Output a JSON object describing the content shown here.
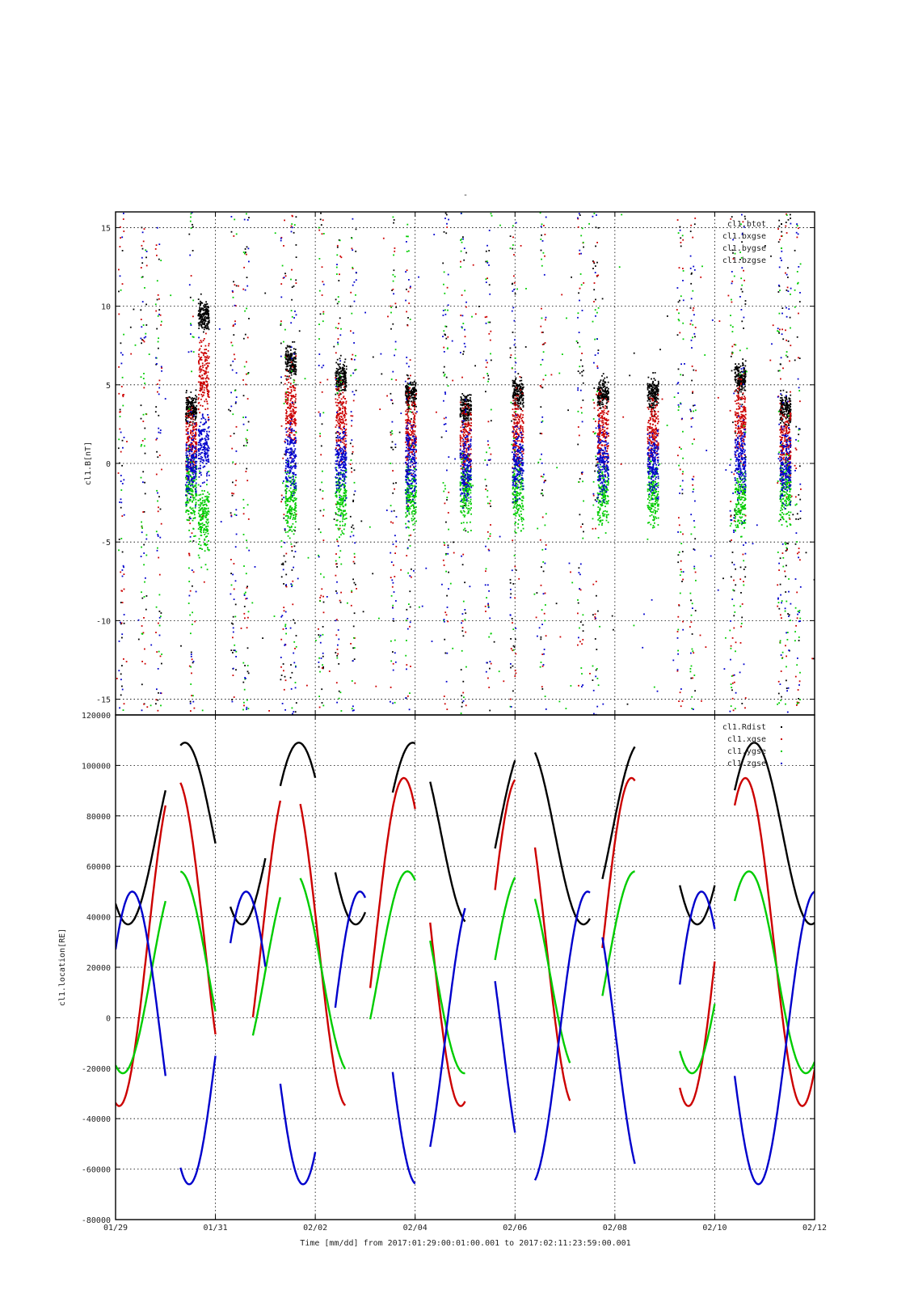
{
  "figure": {
    "title": "-",
    "xlabel": "Time [mm/dd]  from 2017:01:29:00:01:00.001  to  2017:02:11:23:59:00.001"
  },
  "chart_data": [
    {
      "type": "scatter",
      "ylabel": "cl1.B[nT]",
      "ylim": [
        -16,
        16
      ],
      "yticks": [
        -15,
        -10,
        -5,
        0,
        5,
        10,
        15
      ],
      "xlim_days": [
        0,
        14
      ],
      "xtick_labels": [
        "01/29",
        "01/31",
        "02/02",
        "02/04",
        "02/06",
        "02/08",
        "02/10",
        "02/12"
      ],
      "grid": true,
      "legend_position": "top-right",
      "series": [
        {
          "name": "cl1.btot",
          "color": "#000000"
        },
        {
          "name": "cl1.bxgse",
          "color": "#cc0000"
        },
        {
          "name": "cl1.bygse",
          "color": "#00cc00"
        },
        {
          "name": "cl1.bzgse",
          "color": "#0000cc"
        }
      ],
      "data_note_clusters_day_center_level": [
        [
          1.5,
          2
        ],
        [
          1.75,
          8
        ],
        [
          3.5,
          5
        ],
        [
          4.5,
          4
        ],
        [
          5.9,
          3
        ],
        [
          7.0,
          2
        ],
        [
          8.05,
          3
        ],
        [
          9.75,
          3
        ],
        [
          10.75,
          3
        ],
        [
          12.5,
          4
        ],
        [
          13.4,
          2
        ]
      ]
    },
    {
      "type": "line",
      "ylabel": "cl1.location[RE]",
      "ylim": [
        -80000,
        120000
      ],
      "yticks": [
        -80000,
        -60000,
        -40000,
        -20000,
        0,
        20000,
        40000,
        60000,
        80000,
        100000,
        120000
      ],
      "xlim_days": [
        0,
        14
      ],
      "xtick_labels": [
        "01/29",
        "01/31",
        "02/02",
        "02/04",
        "02/06",
        "02/08",
        "02/10",
        "02/12"
      ],
      "grid": true,
      "legend_position": "top-right",
      "orbit_period_days": 2.28,
      "series": [
        {
          "name": "cl1.Rdist",
          "color": "#000000",
          "segments": [
            [
              0,
              1
            ],
            [
              1.3,
              2.0
            ],
            [
              2.3,
              3.0
            ],
            [
              3.3,
              4.0
            ],
            [
              4.4,
              5.0
            ],
            [
              5.55,
              6.0
            ],
            [
              6.3,
              7.0
            ],
            [
              7.6,
              8.0
            ],
            [
              8.4,
              9.5
            ],
            [
              9.75,
              10.4
            ],
            [
              11.3,
              12.0
            ],
            [
              12.4,
              14.0
            ]
          ]
        },
        {
          "name": "cl1.xgse",
          "color": "#cc0000",
          "segments": [
            [
              0,
              1
            ],
            [
              1.3,
              2.0
            ],
            [
              2.75,
              3.3
            ],
            [
              3.7,
              4.6
            ],
            [
              5.1,
              6.0
            ],
            [
              6.3,
              7.0
            ],
            [
              7.6,
              8.0
            ],
            [
              8.4,
              9.1
            ],
            [
              9.75,
              10.4
            ],
            [
              11.3,
              12.0
            ],
            [
              12.4,
              14.0
            ]
          ]
        },
        {
          "name": "cl1.ygse",
          "color": "#00cc00",
          "segments": [
            [
              0,
              1
            ],
            [
              1.3,
              2.0
            ],
            [
              2.75,
              3.3
            ],
            [
              3.7,
              4.6
            ],
            [
              5.1,
              6.0
            ],
            [
              6.3,
              7.0
            ],
            [
              7.6,
              8.0
            ],
            [
              8.4,
              9.1
            ],
            [
              9.75,
              10.4
            ],
            [
              11.3,
              12.0
            ],
            [
              12.4,
              14.0
            ]
          ]
        },
        {
          "name": "cl1.zgse",
          "color": "#0000cc",
          "segments": [
            [
              0,
              1
            ],
            [
              1.3,
              2.0
            ],
            [
              2.3,
              3.0
            ],
            [
              3.3,
              4.0
            ],
            [
              4.4,
              5.0
            ],
            [
              5.55,
              6.0
            ],
            [
              6.3,
              7.0
            ],
            [
              7.6,
              8.0
            ],
            [
              8.4,
              9.5
            ],
            [
              9.75,
              10.4
            ],
            [
              11.3,
              12.0
            ],
            [
              12.4,
              14.0
            ]
          ]
        }
      ]
    }
  ]
}
